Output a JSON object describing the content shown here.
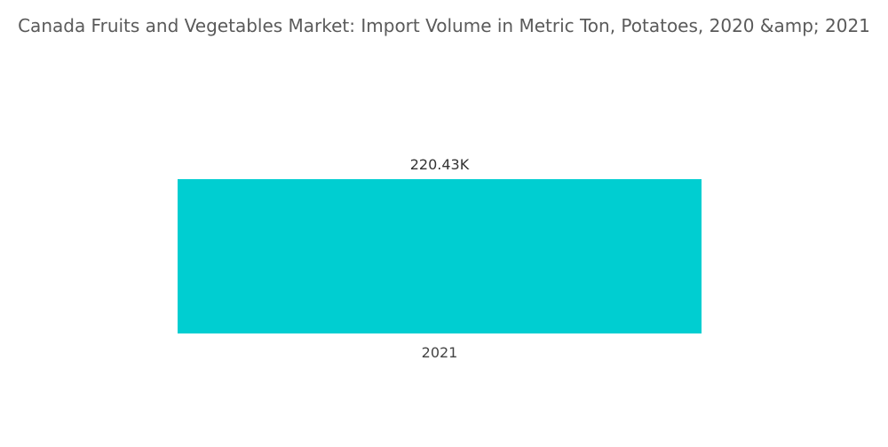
{
  "chart_data": {
    "type": "bar",
    "title": "Canada Fruits and Vegetables Market: Import Volume in Metric Ton, Potatoes, 2020 &amp; 2021",
    "categories": [
      "2021"
    ],
    "values": [
      220430
    ],
    "data_labels": [
      "220.43K"
    ],
    "xlabel": "",
    "ylabel": "",
    "grid": false,
    "legend": "none",
    "bar_color": "#00CED1"
  }
}
